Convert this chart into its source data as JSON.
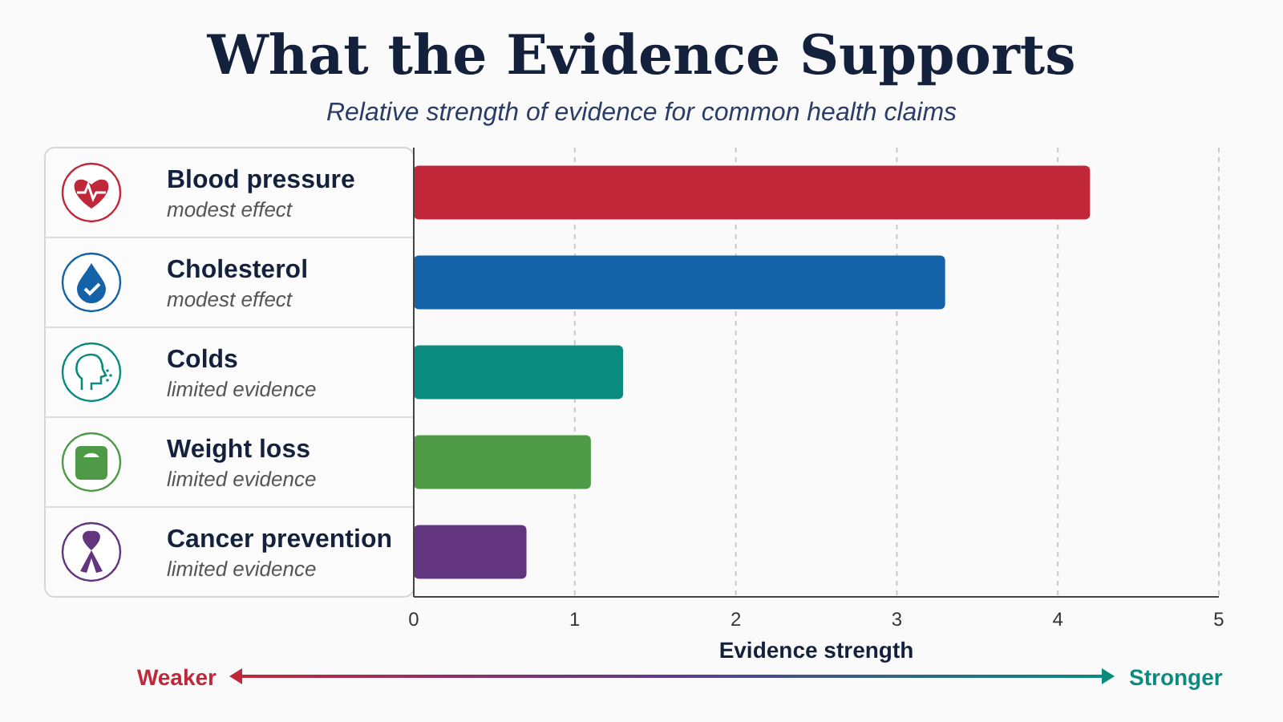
{
  "chart_data": {
    "type": "bar",
    "orientation": "horizontal",
    "title": "What the Evidence Supports",
    "subtitle": "Relative strength of evidence for common health claims",
    "xlabel": "Evidence strength",
    "categories": [
      "Blood pressure",
      "Cholesterol",
      "Colds",
      "Weight loss",
      "Cancer prevention"
    ],
    "values": [
      4.2,
      3.3,
      1.3,
      1.1,
      0.7
    ],
    "colors": [
      "#c0283a",
      "#1462a8",
      "#0b8a80",
      "#4e9a47",
      "#62357e"
    ],
    "xlim": [
      0,
      5
    ],
    "xticks": [
      0,
      1,
      2,
      3,
      4,
      5
    ],
    "grid": "x",
    "annotations": [
      "modest effect",
      "modest effect",
      "limited evidence",
      "limited evidence",
      "limited evidence",
      "Weaker",
      "Stronger"
    ]
  }
}
